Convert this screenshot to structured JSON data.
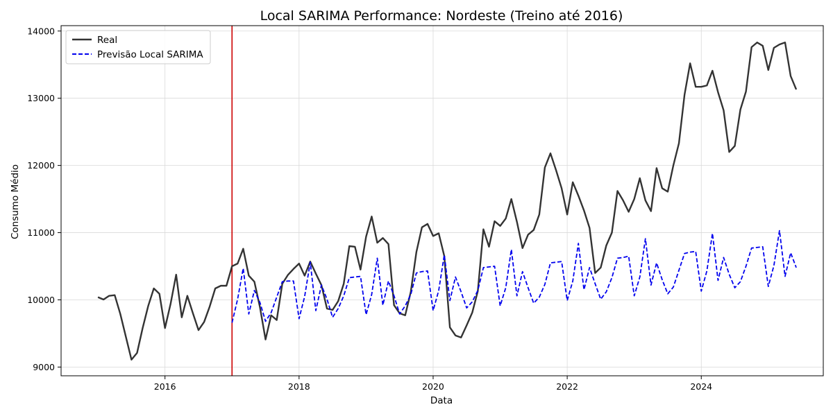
{
  "chart_data": {
    "type": "line",
    "title": "Local SARIMA Performance: Nordeste (Treino até 2016)",
    "xlabel": "Data",
    "ylabel": "Consumo Médio",
    "xlim": [
      2014.45,
      2025.82
    ],
    "ylim": [
      8870,
      14080
    ],
    "x_ticks": [
      2016,
      2018,
      2020,
      2022,
      2024
    ],
    "y_ticks": [
      9000,
      10000,
      11000,
      12000,
      13000,
      14000
    ],
    "grid": true,
    "legend_position": "top-left",
    "vline": {
      "x": 2017.0,
      "color": "#cc0000"
    },
    "series": [
      {
        "name": "Real",
        "color": "#333333",
        "style": "solid",
        "start": 2015.0,
        "step": 0.0833333,
        "values": [
          10040,
          10005,
          10060,
          10070,
          9790,
          9450,
          9110,
          9210,
          9580,
          9910,
          10170,
          10090,
          9580,
          9940,
          10375,
          9740,
          10060,
          9800,
          9550,
          9670,
          9900,
          10170,
          10210,
          10210,
          10500,
          10540,
          10760,
          10360,
          10270,
          9890,
          9410,
          9770,
          9700,
          10240,
          10370,
          10460,
          10540,
          10360,
          10570,
          10390,
          10220,
          9870,
          9850,
          9980,
          10240,
          10800,
          10790,
          10450,
          10940,
          11240,
          10850,
          10920,
          10830,
          9920,
          9800,
          9770,
          10120,
          10710,
          11080,
          11130,
          10950,
          10990,
          10650,
          9590,
          9470,
          9440,
          9620,
          9810,
          10130,
          11050,
          10790,
          11170,
          11100,
          11210,
          11500,
          11160,
          10770,
          10970,
          11040,
          11270,
          11970,
          12180,
          11930,
          11660,
          11270,
          11750,
          11550,
          11330,
          11070,
          10400,
          10480,
          10810,
          11000,
          11620,
          11480,
          11310,
          11500,
          11810,
          11480,
          11320,
          11960,
          11660,
          11610,
          12000,
          12330,
          13050,
          13520,
          13170,
          13170,
          13190,
          13410,
          13090,
          12820,
          12200,
          12290,
          12830,
          13100,
          13760,
          13830,
          13780,
          13420,
          13750,
          13800,
          13830,
          13330,
          13130
        ]
      },
      {
        "name": "Previsão Local SARIMA",
        "color": "#0000ee",
        "style": "dashed",
        "start": 2017.0,
        "step": 0.0833333,
        "values": [
          9660,
          10010,
          10470,
          9790,
          10140,
          9960,
          9680,
          9810,
          10040,
          10270,
          10280,
          10280,
          9720,
          10050,
          10560,
          9840,
          10220,
          10010,
          9740,
          9870,
          10060,
          10330,
          10340,
          10350,
          9780,
          10080,
          10620,
          9920,
          10280,
          10060,
          9790,
          9910,
          10080,
          10400,
          10420,
          10430,
          9840,
          10140,
          10670,
          9990,
          10340,
          10120,
          9880,
          9970,
          10140,
          10480,
          10490,
          10500,
          9910,
          10180,
          10750,
          10060,
          10420,
          10180,
          9950,
          10040,
          10230,
          10550,
          10560,
          10570,
          9990,
          10280,
          10840,
          10150,
          10480,
          10240,
          10010,
          10120,
          10330,
          10620,
          10630,
          10650,
          10060,
          10340,
          10910,
          10220,
          10550,
          10300,
          10090,
          10190,
          10440,
          10690,
          10710,
          10720,
          10130,
          10430,
          10990,
          10290,
          10630,
          10380,
          10180,
          10270,
          10500,
          10770,
          10780,
          10790,
          10200,
          10510,
          11030,
          10350,
          10700,
          10480
        ]
      }
    ]
  }
}
